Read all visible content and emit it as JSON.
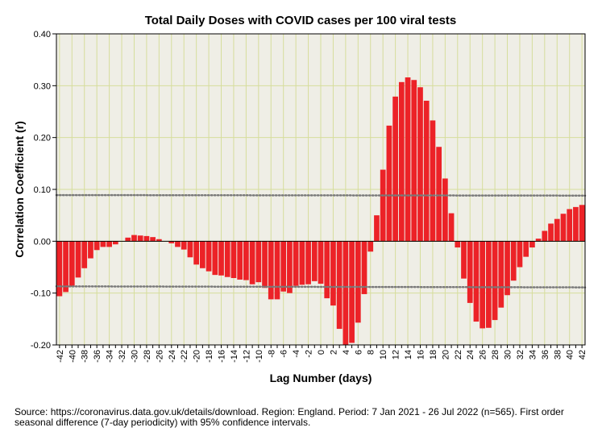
{
  "chart_data": {
    "type": "bar",
    "title": "Total Daily Doses with COVID cases per 100 viral tests",
    "xlabel": "Lag Number (days)",
    "ylabel": "Correlation Coefficient (r)",
    "ylim": [
      -0.2,
      0.4
    ],
    "yticks": [
      -0.2,
      -0.1,
      0.0,
      0.1,
      0.2,
      0.3,
      0.4
    ],
    "ytick_labels": [
      "-0.20",
      "-0.10",
      "0.00",
      "0.10",
      "0.20",
      "0.30",
      "0.40"
    ],
    "x": [
      -42,
      -41,
      -40,
      -39,
      -38,
      -37,
      -36,
      -35,
      -34,
      -33,
      -32,
      -31,
      -30,
      -29,
      -28,
      -27,
      -26,
      -25,
      -24,
      -23,
      -22,
      -21,
      -20,
      -19,
      -18,
      -17,
      -16,
      -15,
      -14,
      -13,
      -12,
      -11,
      -10,
      -9,
      -8,
      -7,
      -6,
      -5,
      -4,
      -3,
      -2,
      -1,
      0,
      1,
      2,
      3,
      4,
      5,
      6,
      7,
      8,
      9,
      10,
      11,
      12,
      13,
      14,
      15,
      16,
      17,
      18,
      19,
      20,
      21,
      22,
      23,
      24,
      25,
      26,
      27,
      28,
      29,
      30,
      31,
      32,
      33,
      34,
      35,
      36,
      37,
      38,
      39,
      40,
      41,
      42
    ],
    "xtick_labels": [
      "-42",
      "-40",
      "-38",
      "-36",
      "-34",
      "-32",
      "-30",
      "-28",
      "-26",
      "-24",
      "-22",
      "-20",
      "-18",
      "-16",
      "-14",
      "-12",
      "-10",
      "-8",
      "-6",
      "-4",
      "-2",
      "0",
      "2",
      "4",
      "6",
      "8",
      "10",
      "12",
      "14",
      "16",
      "18",
      "20",
      "22",
      "24",
      "26",
      "28",
      "30",
      "32",
      "34",
      "36",
      "38",
      "40",
      "42"
    ],
    "values": [
      -0.106,
      -0.098,
      -0.088,
      -0.07,
      -0.052,
      -0.033,
      -0.017,
      -0.011,
      -0.011,
      -0.006,
      0.0,
      0.007,
      0.012,
      0.011,
      0.01,
      0.008,
      0.004,
      0.0,
      -0.004,
      -0.011,
      -0.016,
      -0.031,
      -0.045,
      -0.052,
      -0.058,
      -0.065,
      -0.066,
      -0.069,
      -0.071,
      -0.074,
      -0.075,
      -0.083,
      -0.079,
      -0.09,
      -0.112,
      -0.112,
      -0.097,
      -0.1,
      -0.086,
      -0.084,
      -0.083,
      -0.077,
      -0.082,
      -0.11,
      -0.124,
      -0.169,
      -0.2,
      -0.196,
      -0.157,
      -0.102,
      -0.02,
      0.05,
      0.138,
      0.223,
      0.279,
      0.307,
      0.316,
      0.311,
      0.297,
      0.271,
      0.233,
      0.182,
      0.121,
      0.054,
      -0.012,
      -0.072,
      -0.119,
      -0.155,
      -0.168,
      -0.167,
      -0.152,
      -0.128,
      -0.104,
      -0.076,
      -0.05,
      -0.03,
      -0.012,
      0.005,
      0.02,
      0.034,
      0.043,
      0.053,
      0.062,
      0.066,
      0.07
    ],
    "ci_upper": [
      0.089,
      0.088
    ],
    "ci_lower": [
      -0.087,
      -0.089
    ],
    "grid": true,
    "colors": {
      "bar": "#ec2227",
      "plot_bg": "#efeee6",
      "gridline": "#d6dd9c",
      "ci_line": "#7a7a7a"
    }
  },
  "source_note": "Source: https://coronavirus.data.gov.uk/details/download. Region: England. Period: 7 Jan 2021 -  26 Jul 2022 (n=565). First order seasonal difference (7-day periodicity) with 95% confidence intervals."
}
